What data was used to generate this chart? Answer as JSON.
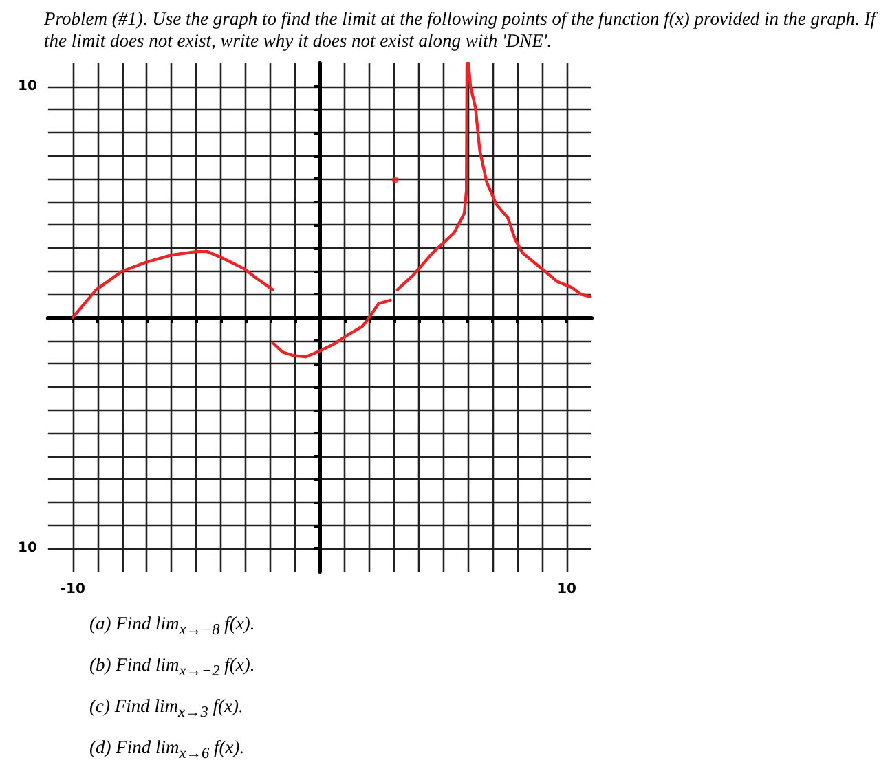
{
  "chart_data": {
    "type": "line",
    "title": "Problem (#1). Use the graph to find the limit at the following points of the function f(x) provided in the graph. If the limit does not exist, write why it does not exist along with 'DNE'.",
    "annotations": [
      "(a) Find lim$_{x→−8}$ f(x).",
      "(b) Find lim$_{x→−2}$ f(x).",
      "(c) Find lim$_{x→3}$ f(x).",
      "(d) Find lim$_{x→6}$ f(x)."
    ],
    "xlim": [
      -11,
      11
    ],
    "ylim": [
      -11,
      11
    ],
    "xticks": [
      {
        "value": -10,
        "label": "-10"
      },
      {
        "value": -9,
        "label": null
      },
      {
        "value": -8,
        "label": null
      },
      {
        "value": -7,
        "label": null
      },
      {
        "value": -6,
        "label": null
      },
      {
        "value": -5,
        "label": null
      },
      {
        "value": -4,
        "label": null
      },
      {
        "value": -3,
        "label": null
      },
      {
        "value": -2,
        "label": null
      },
      {
        "value": -1,
        "label": null
      },
      {
        "value": 0,
        "label": null
      },
      {
        "value": 1,
        "label": null
      },
      {
        "value": 2,
        "label": null
      },
      {
        "value": 3,
        "label": null
      },
      {
        "value": 4,
        "label": null
      },
      {
        "value": 5,
        "label": null
      },
      {
        "value": 6,
        "label": null
      },
      {
        "value": 7,
        "label": null
      },
      {
        "value": 8,
        "label": null
      },
      {
        "value": 9,
        "label": null
      },
      {
        "value": 10,
        "label": "10"
      }
    ],
    "yticks": [
      {
        "value": -10,
        "label": "10"
      },
      {
        "value": -9,
        "label": null
      },
      {
        "value": -8,
        "label": null
      },
      {
        "value": -7,
        "label": null
      },
      {
        "value": -6,
        "label": null
      },
      {
        "value": -5,
        "label": null
      },
      {
        "value": -4,
        "label": null
      },
      {
        "value": -3,
        "label": null
      },
      {
        "value": -2,
        "label": null
      },
      {
        "value": -1,
        "label": null
      },
      {
        "value": 0,
        "label": null
      },
      {
        "value": 1,
        "label": null
      },
      {
        "value": 2,
        "label": null
      },
      {
        "value": 3,
        "label": null
      },
      {
        "value": 4,
        "label": null
      },
      {
        "value": 5,
        "label": null
      },
      {
        "value": 6,
        "label": null
      },
      {
        "value": 7,
        "label": null
      },
      {
        "value": 8,
        "label": null
      },
      {
        "value": 9,
        "label": null
      },
      {
        "value": 10,
        "label": "10"
      }
    ],
    "grid": true,
    "marker": "none",
    "line_style": "solid",
    "series": [
      {
        "color": "#e8262a",
        "x": [
          -10,
          -9.05,
          -8,
          -7,
          -6,
          -5,
          -4.55,
          -4,
          -3.05,
          -2.57,
          -1.9
        ],
        "values": [
          0,
          1.2,
          2,
          2.4,
          2.7,
          2.85,
          2.85,
          2.6,
          2.1,
          1.7,
          1.2
        ]
      },
      {
        "color": "#e8262a",
        "x": [
          -1.9,
          -1.5,
          -1.05,
          -0.57,
          0,
          0.57,
          1.14,
          1.71,
          2,
          2.38,
          2.86
        ],
        "values": [
          -1.1,
          -1.5,
          -1.65,
          -1.7,
          -1.45,
          -1.15,
          -0.75,
          -0.4,
          0,
          0.6,
          0.75
        ]
      },
      {
        "color": "#e8262a",
        "x": [
          3.14,
          3.8,
          4.57,
          5.43,
          5.85,
          5.94,
          5.96
        ],
        "values": [
          1.2,
          1.85,
          2.8,
          3.65,
          4.5,
          5.5,
          11
        ]
      },
      {
        "color": "#e8262a",
        "x": [
          6.02,
          6.1,
          6.3,
          6.48,
          6.76,
          7.14,
          7.62,
          7.9,
          8.2,
          9.05,
          9.62,
          10.2,
          10.57,
          10.95
        ],
        "values": [
          11,
          10,
          9.1,
          7.2,
          5.85,
          4.9,
          4.3,
          3.4,
          2.8,
          2.05,
          1.55,
          1.3,
          1,
          0.9
        ]
      },
      {
        "type": "scatter",
        "color": "#e8262a",
        "marker": "circle",
        "x": [
          3.05
        ],
        "values": [
          5.95
        ]
      }
    ]
  }
}
